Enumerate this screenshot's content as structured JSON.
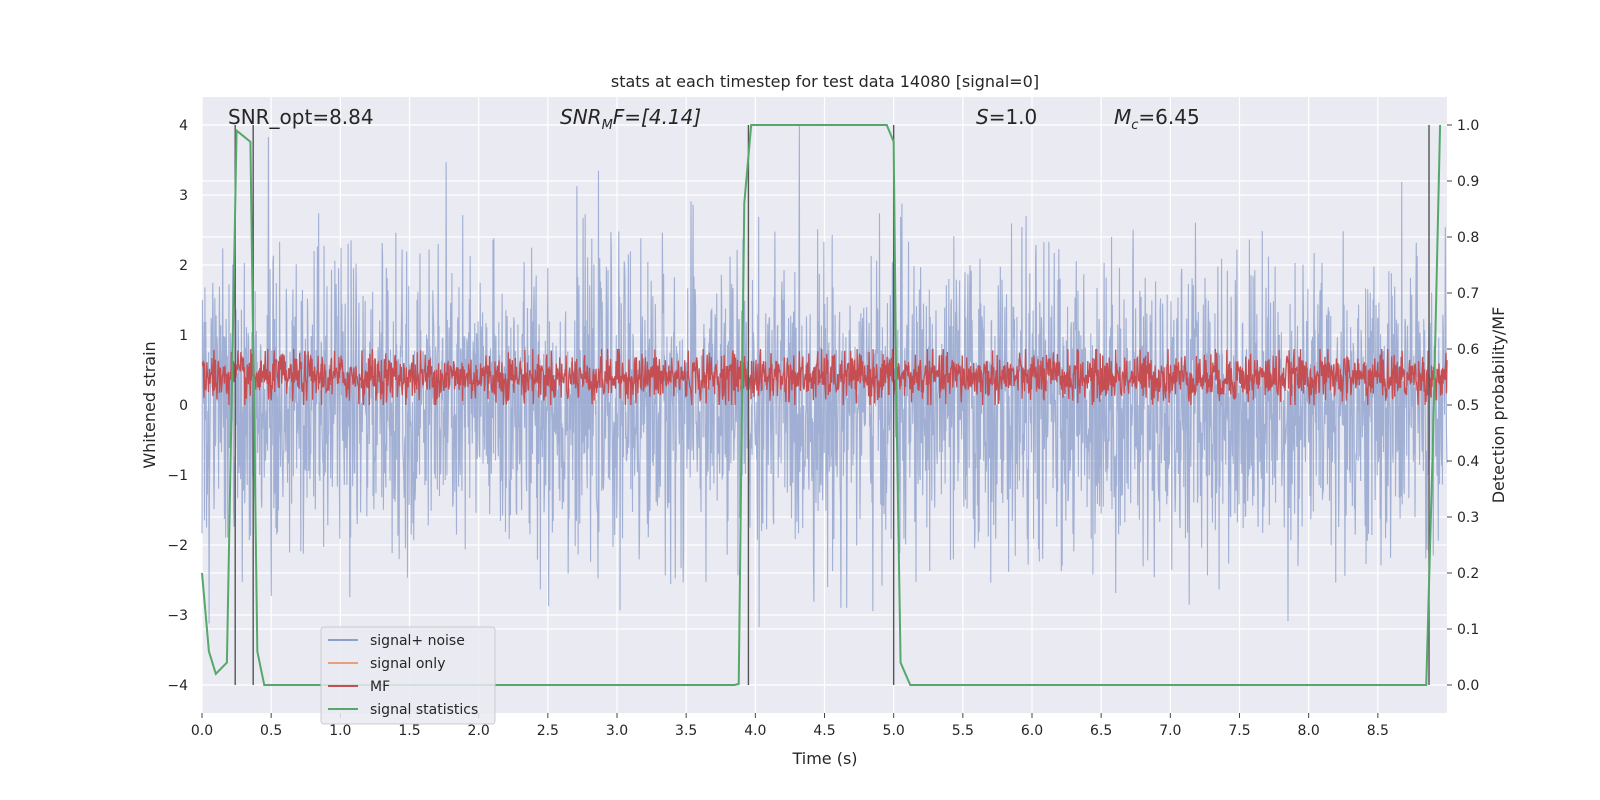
{
  "chart_data": {
    "type": "line",
    "title": "stats at each timestep for test data 14080 [signal=0]",
    "xlabel": "Time (s)",
    "ylabel_left": "Whitened strain",
    "ylabel_right": "Detection probability/MF",
    "xlim": [
      0.0,
      9.0
    ],
    "ylim_left": [
      -4.4,
      4.4
    ],
    "ylim_right": [
      -0.05,
      1.05
    ],
    "x_ticks": [
      "0.0",
      "0.5",
      "1.0",
      "1.5",
      "2.0",
      "2.5",
      "3.0",
      "3.5",
      "4.0",
      "4.5",
      "5.0",
      "5.5",
      "6.0",
      "6.5",
      "7.0",
      "7.5",
      "8.0",
      "8.5"
    ],
    "x_tick_values": [
      0.0,
      0.5,
      1.0,
      1.5,
      2.0,
      2.5,
      3.0,
      3.5,
      4.0,
      4.5,
      5.0,
      5.5,
      6.0,
      6.5,
      7.0,
      7.5,
      8.0,
      8.5
    ],
    "y_left_ticks": [
      "4",
      "3",
      "2",
      "1",
      "0",
      "−1",
      "−2",
      "−3",
      "−4"
    ],
    "y_left_tick_values": [
      4,
      3,
      2,
      1,
      0,
      -1,
      -2,
      -3,
      -4
    ],
    "y_right_ticks": [
      "1.0",
      "0.9",
      "0.8",
      "0.7",
      "0.6",
      "0.5",
      "0.4",
      "0.3",
      "0.2",
      "0.1",
      "0.0"
    ],
    "y_right_tick_values": [
      1.0,
      0.9,
      0.8,
      0.7,
      0.6,
      0.5,
      0.4,
      0.3,
      0.2,
      0.1,
      0.0
    ],
    "grid": true,
    "legend_placement": "lower-left",
    "legend": [
      "signal+ noise",
      "signal only",
      "MF",
      "signal statistics"
    ],
    "annotations": {
      "snr_opt": "SNR_opt=8.84",
      "snr_mf_base": "SNR",
      "snr_mf_sub": "M",
      "snr_mf_rest": "F=[4.14]",
      "s_var": "S",
      "s_value": "=1.0",
      "mc_base": "M",
      "mc_sub": "c",
      "mc_value": "=6.45"
    },
    "series": [
      {
        "name": "signal+ noise",
        "axis": "left",
        "color": "#8da0cb",
        "note_style": "dense noise trace",
        "amplitude_range": [
          -4.0,
          4.0
        ],
        "typical_range": [
          -2.2,
          2.6
        ]
      },
      {
        "name": "signal only",
        "axis": "left",
        "color": "#e8a07a",
        "values": []
      },
      {
        "name": "MF",
        "axis": "right",
        "color": "#c44e52",
        "note_style": "dense noise trace",
        "range": [
          0.5,
          0.6
        ]
      },
      {
        "name": "signal statistics",
        "axis": "right",
        "color": "#55a868",
        "x": [
          0.0,
          0.05,
          0.1,
          0.18,
          0.25,
          0.3,
          0.35,
          0.4,
          0.45,
          0.5,
          3.85,
          3.88,
          3.92,
          3.97,
          4.0,
          4.95,
          5.0,
          5.02,
          5.05,
          5.12,
          8.85,
          8.9,
          8.95
        ],
        "values": [
          0.2,
          0.06,
          0.02,
          0.04,
          0.99,
          0.98,
          0.97,
          0.06,
          0.0,
          0.0,
          0.0,
          0.002,
          0.86,
          1.0,
          1.0,
          1.0,
          0.97,
          0.5,
          0.04,
          0.0,
          0.0,
          0.45,
          1.0
        ]
      }
    ],
    "vertical_lines": [
      0.24,
      0.37,
      3.95,
      5.0,
      8.87
    ]
  }
}
